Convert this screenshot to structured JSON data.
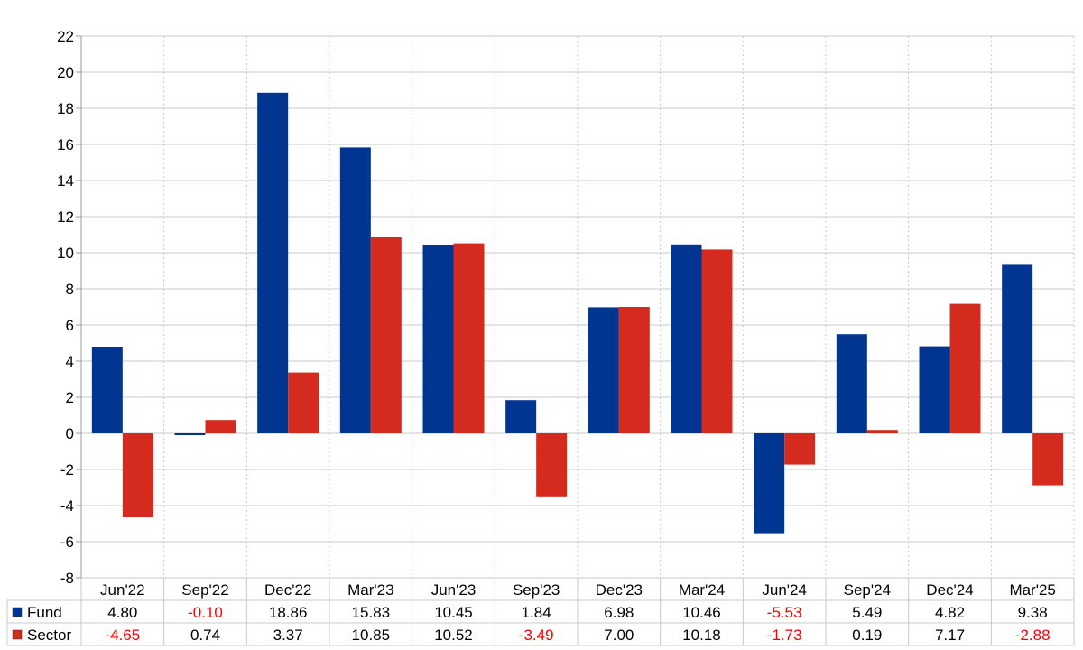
{
  "chart_data": {
    "type": "bar",
    "categories": [
      "Jun'22",
      "Sep'22",
      "Dec'22",
      "Mar'23",
      "Jun'23",
      "Sep'23",
      "Dec'23",
      "Mar'24",
      "Jun'24",
      "Sep'24",
      "Dec'24",
      "Mar'25"
    ],
    "series": [
      {
        "name": "Fund",
        "color": "#003591",
        "values": [
          4.8,
          -0.1,
          18.86,
          15.83,
          10.45,
          1.84,
          6.98,
          10.46,
          -5.53,
          5.49,
          4.82,
          9.38
        ],
        "labels": [
          "4.80",
          "-0.10",
          "18.86",
          "15.83",
          "10.45",
          "1.84",
          "6.98",
          "10.46",
          "-5.53",
          "5.49",
          "4.82",
          "9.38"
        ]
      },
      {
        "name": "Sector",
        "color": "#d52b1e",
        "values": [
          -4.65,
          0.74,
          3.37,
          10.85,
          10.52,
          -3.49,
          7.0,
          10.18,
          -1.73,
          0.19,
          7.17,
          -2.88
        ],
        "labels": [
          "-4.65",
          "0.74",
          "3.37",
          "10.85",
          "10.52",
          "-3.49",
          "7.00",
          "10.18",
          "-1.73",
          "0.19",
          "7.17",
          "-2.88"
        ]
      }
    ],
    "ylim": [
      -8,
      22
    ],
    "yticks": [
      "-8",
      "-6",
      "-4",
      "-2",
      "0",
      "2",
      "4",
      "6",
      "8",
      "10",
      "12",
      "14",
      "16",
      "18",
      "20",
      "22"
    ],
    "grid": true,
    "legend": "data table",
    "negative_color": "#ff0000",
    "title": "",
    "xlabel": "",
    "ylabel": ""
  }
}
